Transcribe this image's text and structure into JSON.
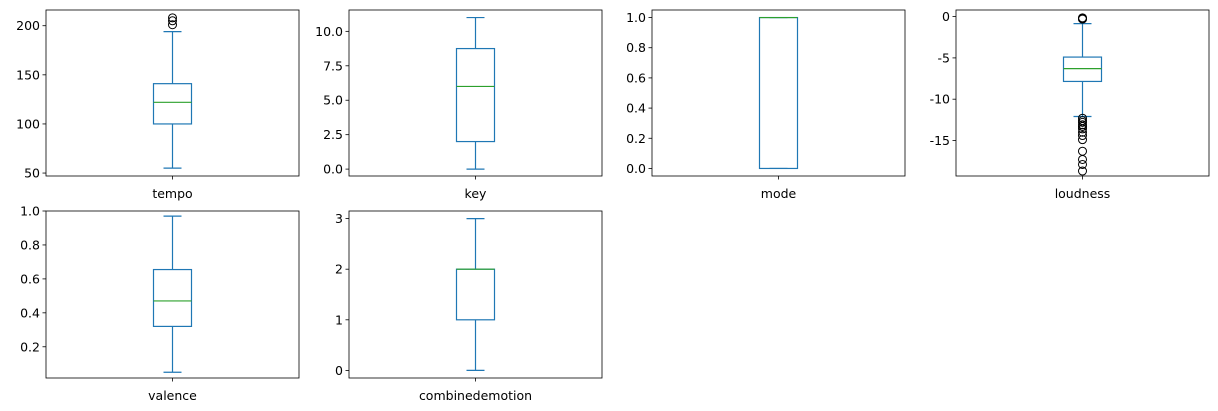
{
  "colors": {
    "box": "#1f77b4",
    "median": "#2ca02c",
    "outlier": "#000000",
    "axes": "#000000"
  },
  "chart_data": [
    {
      "type": "box",
      "xlabel": "tempo",
      "yticks": [
        50,
        100,
        150,
        200
      ],
      "ylim": [
        47,
        216
      ],
      "box": {
        "whisker_low": 55,
        "q1": 100,
        "median": 122,
        "q3": 141,
        "whisker_high": 194
      },
      "outliers": [
        201,
        205,
        208
      ]
    },
    {
      "type": "box",
      "xlabel": "key",
      "yticks": [
        0.0,
        2.5,
        5.0,
        7.5,
        10.0
      ],
      "ylim": [
        -0.5,
        11.55
      ],
      "box": {
        "whisker_low": 0,
        "q1": 2,
        "median": 6,
        "q3": 8.75,
        "whisker_high": 11
      },
      "outliers": []
    },
    {
      "type": "box",
      "xlabel": "mode",
      "yticks": [
        0.0,
        0.2,
        0.4,
        0.6,
        0.8,
        1.0
      ],
      "ylim": [
        -0.05,
        1.05
      ],
      "box": {
        "whisker_low": 0,
        "q1": 0,
        "median": 1,
        "q3": 1,
        "whisker_high": 1
      },
      "outliers": []
    },
    {
      "type": "box",
      "xlabel": "loudness",
      "yticks": [
        -15,
        -10,
        -5,
        0
      ],
      "ylim": [
        -19.3,
        0.8
      ],
      "box": {
        "whisker_low": -12.1,
        "q1": -7.85,
        "median": -6.3,
        "q3": -4.9,
        "whisker_high": -0.85
      },
      "outliers": [
        -0.3,
        -0.25,
        -0.2,
        -0.15,
        -12.3,
        -12.6,
        -12.8,
        -13.1,
        -13.3,
        -13.6,
        -14.0,
        -14.4,
        -14.9,
        -16.3,
        -17.3,
        -17.9,
        -18.7
      ]
    },
    {
      "type": "box",
      "xlabel": "valence",
      "yticks": [
        0.2,
        0.4,
        0.6,
        0.8,
        1.0
      ],
      "ylim": [
        0.016,
        1.0
      ],
      "box": {
        "whisker_low": 0.05,
        "q1": 0.32,
        "median": 0.47,
        "q3": 0.655,
        "whisker_high": 0.97
      },
      "outliers": []
    },
    {
      "type": "box",
      "xlabel": "combinedemotion",
      "yticks": [
        0,
        1,
        2,
        3
      ],
      "ylim": [
        -0.15,
        3.15
      ],
      "box": {
        "whisker_low": 0,
        "q1": 1,
        "median": 2,
        "q3": 2,
        "whisker_high": 3
      },
      "outliers": []
    }
  ]
}
